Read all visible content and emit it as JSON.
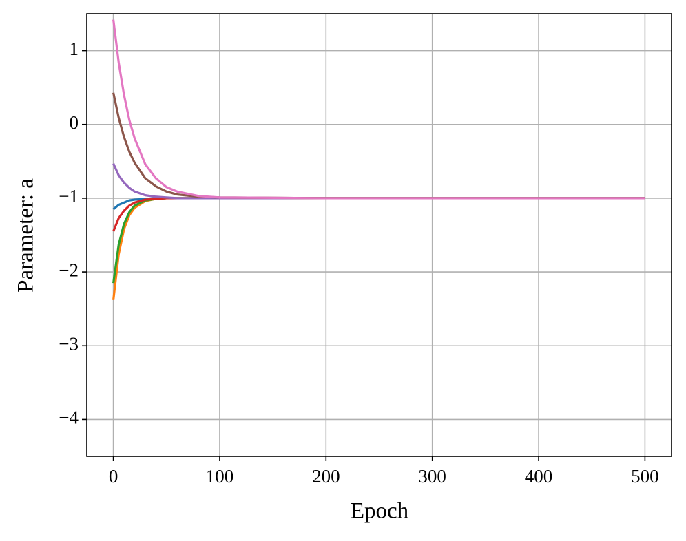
{
  "chart_data": {
    "type": "line",
    "xlabel": "Epoch",
    "ylabel": "Parameter: a",
    "x": [
      0,
      5,
      10,
      15,
      20,
      30,
      40,
      50,
      60,
      80,
      100,
      200,
      300,
      400,
      500
    ],
    "series": [
      {
        "color": "#1f77b4",
        "values": [
          -1.15,
          -1.09,
          -1.06,
          -1.03,
          -1.02,
          -1.01,
          -1,
          -1,
          -1,
          -1,
          -1,
          -1,
          -1,
          -1,
          -1
        ]
      },
      {
        "color": "#ff7f0e",
        "values": [
          -2.38,
          -1.76,
          -1.42,
          -1.23,
          -1.13,
          -1.04,
          -1.01,
          -1,
          -1,
          -1,
          -1,
          -1,
          -1,
          -1,
          -1
        ]
      },
      {
        "color": "#2ca02c",
        "values": [
          -2.15,
          -1.63,
          -1.35,
          -1.19,
          -1.1,
          -1.03,
          -1.01,
          -1,
          -1,
          -1,
          -1,
          -1,
          -1,
          -1,
          -1
        ]
      },
      {
        "color": "#d62728",
        "values": [
          -1.45,
          -1.27,
          -1.17,
          -1.1,
          -1.06,
          -1.02,
          -1.01,
          -1,
          -1,
          -1,
          -1,
          -1,
          -1,
          -1,
          -1
        ]
      },
      {
        "color": "#9467bd",
        "values": [
          -0.53,
          -0.69,
          -0.79,
          -0.86,
          -0.91,
          -0.96,
          -0.98,
          -0.99,
          -1,
          -1,
          -1,
          -1,
          -1,
          -1,
          -1
        ]
      },
      {
        "color": "#8c564b",
        "values": [
          0.43,
          0.09,
          -0.17,
          -0.37,
          -0.52,
          -0.73,
          -0.84,
          -0.91,
          -0.95,
          -0.98,
          -0.99,
          -1,
          -1,
          -1,
          -1
        ]
      },
      {
        "color": "#e377c2",
        "values": [
          1.42,
          0.84,
          0.4,
          0.06,
          -0.19,
          -0.54,
          -0.73,
          -0.85,
          -0.91,
          -0.97,
          -0.99,
          -1,
          -1,
          -1,
          -1
        ]
      }
    ],
    "xlim": [
      -25,
      525
    ],
    "xticks": [
      0,
      100,
      200,
      300,
      400,
      500
    ],
    "ylim": [
      -4.5,
      1.5
    ],
    "yticks": [
      {
        "value": -4,
        "label": "−4"
      },
      {
        "value": -3,
        "label": "−3"
      },
      {
        "value": -2,
        "label": "−2"
      },
      {
        "value": -1,
        "label": "−1"
      },
      0,
      1
    ],
    "grid": true
  }
}
